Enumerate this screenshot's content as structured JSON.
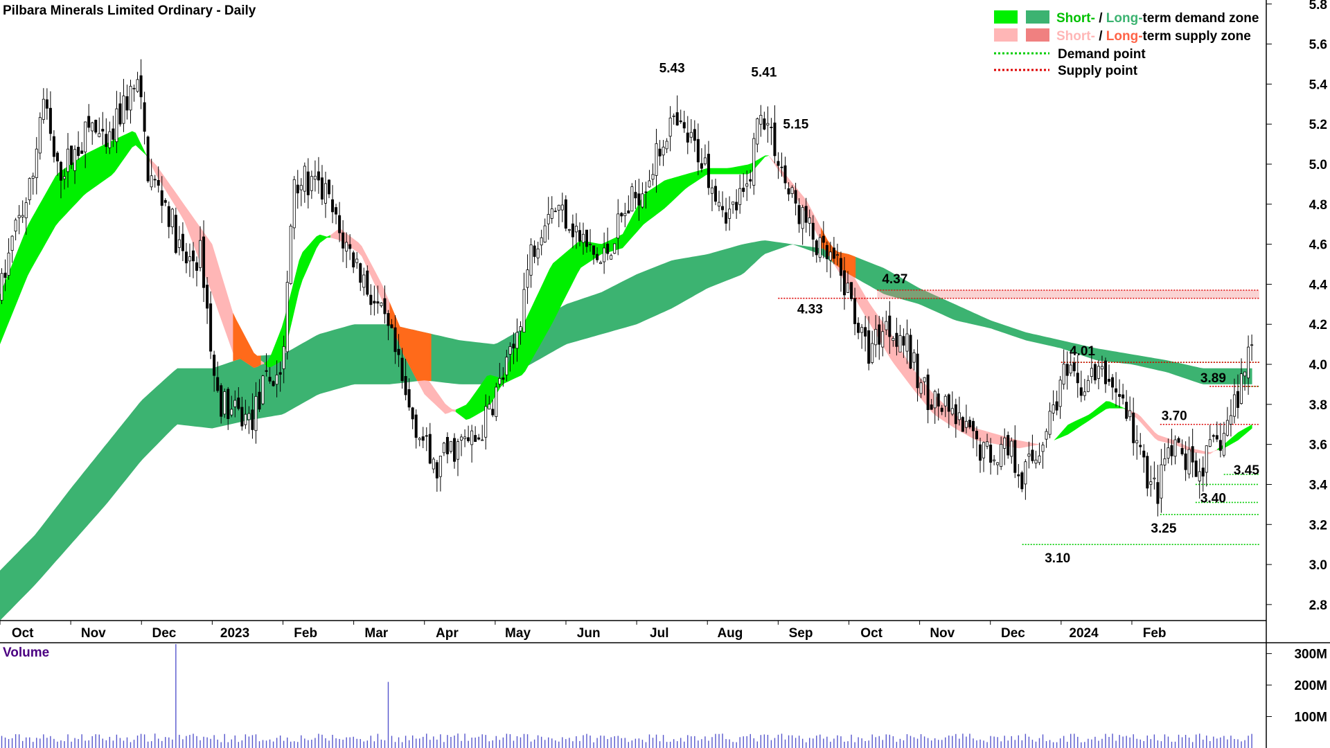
{
  "title": "Pilbara Minerals Limited Ordinary - Daily",
  "volume_label": "Volume",
  "colors": {
    "short_demand": "#00f000",
    "long_demand": "#3cb371",
    "short_supply": "#ffb6b6",
    "long_supply": "#f08080",
    "short_supply_text": "#ffb6b6",
    "demand_text": "#00c000",
    "supply_text": "#ff6347",
    "overlap": "#ff6a1a",
    "demand_point": "#00cc00",
    "supply_point": "#dd0000",
    "candle": "#000000",
    "volume_bar": "#5555cc",
    "axis": "#000000"
  },
  "legend": {
    "demand_short": "Short-",
    "demand_sep": " / ",
    "demand_long": "Long-",
    "demand_rest": "term demand zone",
    "supply_short": "Short-",
    "supply_sep": " / ",
    "supply_long": "Long-",
    "supply_rest": "term supply zone",
    "demand_point": "Demand point",
    "supply_point": "Supply point"
  },
  "chart_data": {
    "type": "candlestick",
    "title": "Pilbara Minerals Limited Ordinary - Daily",
    "x_ticks": [
      "Oct",
      "Nov",
      "Dec",
      "2023",
      "Feb",
      "Mar",
      "Apr",
      "May",
      "Jun",
      "Jul",
      "Aug",
      "Sep",
      "Oct",
      "Nov",
      "Dec",
      "2024",
      "Feb"
    ],
    "x_tick_months": [
      0.5,
      1.5,
      2.5,
      3.5,
      4.5,
      5.5,
      6.5,
      7.5,
      8.5,
      9.5,
      10.5,
      11.5,
      12.5,
      13.5,
      14.5,
      15.5,
      16.5
    ],
    "x_range_months": [
      0,
      17.9
    ],
    "y_ticks": [
      2.8,
      3.0,
      3.2,
      3.4,
      3.6,
      3.8,
      4.0,
      4.2,
      4.4,
      4.6,
      4.8,
      5.0,
      5.2,
      5.4,
      5.6,
      5.8
    ],
    "ylim": [
      2.72,
      5.82
    ],
    "volume_ticks": [
      "100M",
      "200M",
      "300M"
    ],
    "volume_tick_values": [
      100,
      200,
      300
    ],
    "volume_ylim": [
      0,
      330
    ],
    "price_anchors": [
      [
        0.0,
        4.35
      ],
      [
        0.2,
        4.65
      ],
      [
        0.45,
        4.9
      ],
      [
        0.6,
        5.35
      ],
      [
        0.8,
        4.95
      ],
      [
        1.05,
        5.05
      ],
      [
        1.3,
        5.2
      ],
      [
        1.5,
        5.05
      ],
      [
        1.75,
        5.3
      ],
      [
        1.95,
        5.4
      ],
      [
        2.1,
        4.95
      ],
      [
        2.35,
        4.8
      ],
      [
        2.6,
        4.5
      ],
      [
        2.85,
        4.55
      ],
      [
        3.05,
        3.85
      ],
      [
        3.3,
        3.75
      ],
      [
        3.55,
        3.72
      ],
      [
        3.75,
        3.9
      ],
      [
        4.0,
        3.98
      ],
      [
        4.15,
        4.95
      ],
      [
        4.35,
        4.9
      ],
      [
        4.6,
        4.85
      ],
      [
        4.8,
        4.65
      ],
      [
        5.05,
        4.5
      ],
      [
        5.3,
        4.3
      ],
      [
        5.55,
        4.1
      ],
      [
        5.75,
        3.8
      ],
      [
        5.95,
        3.65
      ],
      [
        6.15,
        3.45
      ],
      [
        6.3,
        3.55
      ],
      [
        6.5,
        3.6
      ],
      [
        6.75,
        3.62
      ],
      [
        7.0,
        3.85
      ],
      [
        7.25,
        4.05
      ],
      [
        7.5,
        4.55
      ],
      [
        7.75,
        4.8
      ],
      [
        8.0,
        4.75
      ],
      [
        8.25,
        4.6
      ],
      [
        8.5,
        4.5
      ],
      [
        8.75,
        4.7
      ],
      [
        9.0,
        4.85
      ],
      [
        9.25,
        5.0
      ],
      [
        9.45,
        5.2
      ],
      [
        9.65,
        5.15
      ],
      [
        9.9,
        5.05
      ],
      [
        10.1,
        4.9
      ],
      [
        10.3,
        4.75
      ],
      [
        10.55,
        4.85
      ],
      [
        10.75,
        5.3
      ],
      [
        10.95,
        5.1
      ],
      [
        11.15,
        4.85
      ],
      [
        11.4,
        4.7
      ],
      [
        11.6,
        4.55
      ],
      [
        11.8,
        4.5
      ],
      [
        12.05,
        4.3
      ],
      [
        12.25,
        4.05
      ],
      [
        12.5,
        4.2
      ],
      [
        12.75,
        4.15
      ],
      [
        13.0,
        3.9
      ],
      [
        13.25,
        3.8
      ],
      [
        13.5,
        3.72
      ],
      [
        13.75,
        3.62
      ],
      [
        14.0,
        3.55
      ],
      [
        14.25,
        3.6
      ],
      [
        14.45,
        3.45
      ],
      [
        14.65,
        3.55
      ],
      [
        14.85,
        3.75
      ],
      [
        15.05,
        3.95
      ],
      [
        15.25,
        3.88
      ],
      [
        15.5,
        3.95
      ],
      [
        15.75,
        3.9
      ],
      [
        15.95,
        3.75
      ],
      [
        16.15,
        3.5
      ],
      [
        16.35,
        3.35
      ],
      [
        16.5,
        3.55
      ],
      [
        16.7,
        3.55
      ],
      [
        16.9,
        3.45
      ],
      [
        17.1,
        3.55
      ],
      [
        17.3,
        3.65
      ],
      [
        17.5,
        3.85
      ],
      [
        17.7,
        4.15
      ]
    ],
    "volume_spikes": [
      [
        2.5,
        330
      ],
      [
        5.5,
        210
      ]
    ],
    "short_term_zone": [
      [
        0.0,
        4.1,
        4.35
      ],
      [
        0.4,
        4.45,
        4.7
      ],
      [
        0.8,
        4.7,
        4.95
      ],
      [
        1.2,
        4.85,
        5.05
      ],
      [
        1.6,
        4.95,
        5.12
      ],
      [
        1.9,
        5.1,
        5.17
      ],
      [
        2.2,
        5.0,
        4.95
      ],
      [
        2.6,
        4.8,
        4.72
      ],
      [
        3.0,
        4.6,
        4.35
      ],
      [
        3.3,
        4.25,
        4.05
      ],
      [
        3.6,
        4.05,
        3.98
      ],
      [
        3.8,
        3.98,
        4.02
      ],
      [
        4.0,
        4.02,
        4.2
      ],
      [
        4.25,
        4.4,
        4.55
      ],
      [
        4.5,
        4.6,
        4.65
      ],
      [
        4.8,
        4.68,
        4.62
      ],
      [
        5.1,
        4.6,
        4.55
      ],
      [
        5.4,
        4.4,
        4.32
      ],
      [
        5.7,
        4.15,
        4.05
      ],
      [
        6.0,
        3.95,
        3.85
      ],
      [
        6.3,
        3.8,
        3.75
      ],
      [
        6.6,
        3.72,
        3.8
      ],
      [
        6.9,
        3.78,
        3.95
      ],
      [
        7.1,
        3.9,
        3.93
      ],
      [
        7.4,
        3.95,
        4.2
      ],
      [
        7.8,
        4.2,
        4.5
      ],
      [
        8.2,
        4.48,
        4.62
      ],
      [
        8.5,
        4.55,
        4.6
      ],
      [
        8.8,
        4.58,
        4.65
      ],
      [
        9.1,
        4.7,
        4.85
      ],
      [
        9.4,
        4.78,
        4.92
      ],
      [
        9.7,
        4.88,
        4.95
      ],
      [
        10.0,
        4.95,
        4.98
      ],
      [
        10.3,
        4.95,
        4.98
      ],
      [
        10.6,
        4.95,
        5.0
      ],
      [
        10.85,
        5.05,
        5.05
      ],
      [
        11.1,
        4.95,
        4.92
      ],
      [
        11.4,
        4.82,
        4.75
      ],
      [
        11.7,
        4.62,
        4.55
      ],
      [
        12.0,
        4.48,
        4.38
      ],
      [
        12.3,
        4.3,
        4.2
      ],
      [
        12.6,
        4.15,
        4.02
      ],
      [
        12.9,
        3.98,
        3.88
      ],
      [
        13.2,
        3.85,
        3.75
      ],
      [
        13.5,
        3.75,
        3.68
      ],
      [
        13.8,
        3.68,
        3.62
      ],
      [
        14.1,
        3.65,
        3.6
      ],
      [
        14.4,
        3.62,
        3.58
      ],
      [
        14.7,
        3.6,
        3.6
      ],
      [
        14.9,
        3.62,
        3.62
      ],
      [
        15.1,
        3.65,
        3.7
      ],
      [
        15.4,
        3.72,
        3.75
      ],
      [
        15.65,
        3.78,
        3.82
      ],
      [
        15.9,
        3.78,
        3.78
      ],
      [
        16.1,
        3.75,
        3.72
      ],
      [
        16.35,
        3.65,
        3.62
      ],
      [
        16.6,
        3.62,
        3.6
      ],
      [
        16.85,
        3.58,
        3.56
      ],
      [
        17.1,
        3.56,
        3.55
      ],
      [
        17.3,
        3.58,
        3.6
      ],
      [
        17.5,
        3.62,
        3.66
      ],
      [
        17.7,
        3.68,
        3.7
      ]
    ],
    "long_term_zone": [
      [
        0.0,
        2.72,
        2.97
      ],
      [
        0.5,
        2.9,
        3.15
      ],
      [
        1.0,
        3.1,
        3.38
      ],
      [
        1.5,
        3.3,
        3.6
      ],
      [
        2.0,
        3.52,
        3.82
      ],
      [
        2.5,
        3.7,
        3.98
      ],
      [
        3.0,
        3.68,
        3.98
      ],
      [
        3.5,
        3.72,
        4.04
      ],
      [
        4.0,
        3.75,
        4.05
      ],
      [
        4.5,
        3.85,
        4.15
      ],
      [
        5.0,
        3.9,
        4.2
      ],
      [
        5.5,
        3.9,
        4.2
      ],
      [
        6.0,
        3.92,
        4.16
      ],
      [
        6.5,
        3.9,
        4.12
      ],
      [
        7.0,
        3.9,
        4.1
      ],
      [
        7.5,
        4.0,
        4.2
      ],
      [
        8.0,
        4.1,
        4.3
      ],
      [
        8.5,
        4.15,
        4.36
      ],
      [
        9.0,
        4.2,
        4.45
      ],
      [
        9.5,
        4.28,
        4.52
      ],
      [
        10.0,
        4.38,
        4.55
      ],
      [
        10.5,
        4.45,
        4.6
      ],
      [
        10.8,
        4.55,
        4.62
      ],
      [
        11.2,
        4.6,
        4.6
      ],
      [
        11.6,
        4.55,
        4.58
      ],
      [
        12.0,
        4.45,
        4.55
      ],
      [
        12.5,
        4.35,
        4.48
      ],
      [
        13.0,
        4.3,
        4.38
      ],
      [
        13.5,
        4.22,
        4.3
      ],
      [
        14.0,
        4.18,
        4.22
      ],
      [
        14.5,
        4.12,
        4.16
      ],
      [
        15.0,
        4.08,
        4.12
      ],
      [
        15.5,
        4.02,
        4.08
      ],
      [
        16.0,
        4.0,
        4.05
      ],
      [
        16.5,
        3.96,
        4.02
      ],
      [
        17.0,
        3.9,
        3.98
      ],
      [
        17.7,
        3.9,
        3.98
      ]
    ],
    "demand_points": [
      {
        "value": 4.01,
        "label": "",
        "from": 15.0
      },
      {
        "value": 3.89,
        "label": "",
        "from": 17.5
      },
      {
        "value": 3.45,
        "label": "3.45",
        "from": 17.3
      },
      {
        "value": 3.4,
        "label": "3.40",
        "from": 16.9
      },
      {
        "value": 3.31,
        "label": "",
        "from": 16.9
      },
      {
        "value": 3.25,
        "label": "3.25",
        "from": 16.4
      },
      {
        "value": 3.1,
        "label": "3.10",
        "from": 14.45
      }
    ],
    "supply_points": [
      {
        "value": 4.37,
        "label": "4.37",
        "from": 12.4
      },
      {
        "value": 4.33,
        "label": "4.33",
        "from": 11.0
      },
      {
        "value": 4.01,
        "label": "4.01",
        "from": 15.0
      },
      {
        "value": 3.89,
        "label": "3.89",
        "from": 17.1
      },
      {
        "value": 3.7,
        "label": "3.70",
        "from": 16.4
      }
    ],
    "peak_labels": [
      {
        "value": 5.43,
        "label": "5.43",
        "month": 9.5
      },
      {
        "value": 5.41,
        "label": "5.41",
        "month": 10.8
      },
      {
        "value": 5.15,
        "label": "5.15",
        "month": 11.25
      }
    ]
  }
}
